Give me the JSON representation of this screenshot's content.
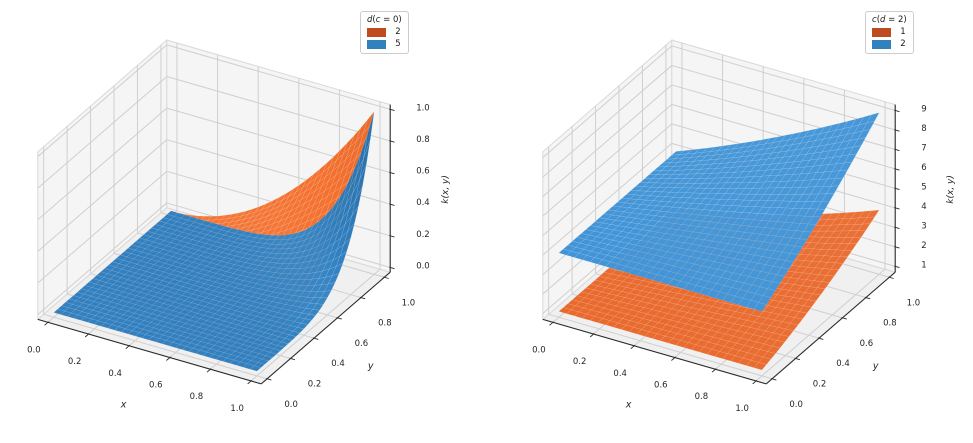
{
  "figure": {
    "background": "#ffffff",
    "description": "Two 3D surface plots of the polynomial kernel k(x, y) = (x*y + c)^d"
  },
  "chart_data": [
    {
      "type": "surface3d",
      "kernel_formula": "k(x,y) = (x*y + c)^d",
      "xlabel": "x",
      "ylabel": "y",
      "zlabel": "k(x, y)",
      "xticks": [
        "0.0",
        "0.2",
        "0.4",
        "0.6",
        "0.8",
        "1.0"
      ],
      "yticks": [
        "0.0",
        "0.2",
        "0.4",
        "0.6",
        "0.8",
        "1.0"
      ],
      "zticks": [
        "0.0",
        "0.2",
        "0.4",
        "0.6",
        "0.8",
        "1.0"
      ],
      "xlim": [
        -0.05,
        1.05
      ],
      "ylim": [
        -0.05,
        1.05
      ],
      "zlim": [
        -0.03,
        1.03
      ],
      "x_range": [
        0,
        1
      ],
      "y_range": [
        0,
        1
      ],
      "legend": {
        "title_parts": [
          {
            "t": "d",
            "i": true
          },
          {
            "t": "(",
            "i": false
          },
          {
            "t": "c",
            "i": true
          },
          {
            "t": " = 0)",
            "i": false
          }
        ],
        "entries": [
          {
            "label": "2",
            "color": "#bf4c1f"
          },
          {
            "label": "5",
            "color": "#3181bd"
          }
        ]
      },
      "surfaces": [
        {
          "name": "d=2",
          "c": 0,
          "d": 2,
          "base_color": "#f4702e",
          "z_at_00": 0,
          "z_at_11": 1
        },
        {
          "name": "d=5",
          "c": 0,
          "d": 5,
          "base_color": "#3181c2",
          "z_at_00": 0,
          "z_at_11": 1
        }
      ]
    },
    {
      "type": "surface3d",
      "kernel_formula": "k(x,y) = (x*y + c)^d",
      "xlabel": "x",
      "ylabel": "y",
      "zlabel": "k(x, y)",
      "xticks": [
        "0.0",
        "0.2",
        "0.4",
        "0.6",
        "0.8",
        "1.0"
      ],
      "yticks": [
        "0.0",
        "0.2",
        "0.4",
        "0.6",
        "0.8",
        "1.0"
      ],
      "zticks": [
        "1",
        "2",
        "3",
        "4",
        "5",
        "6",
        "7",
        "8",
        "9"
      ],
      "xlim": [
        -0.05,
        1.05
      ],
      "ylim": [
        -0.05,
        1.05
      ],
      "zlim": [
        0.7,
        9.3
      ],
      "x_range": [
        0,
        1
      ],
      "y_range": [
        0,
        1
      ],
      "legend": {
        "title_parts": [
          {
            "t": "c",
            "i": true
          },
          {
            "t": "(",
            "i": false
          },
          {
            "t": "d",
            "i": true
          },
          {
            "t": " = 2)",
            "i": false
          }
        ],
        "entries": [
          {
            "label": "1",
            "color": "#bf4c1f"
          },
          {
            "label": "2",
            "color": "#3181bd"
          }
        ]
      },
      "surfaces": [
        {
          "name": "c=1",
          "c": 1,
          "d": 2,
          "base_color": "#e9692c",
          "z_at_00": 1,
          "z_at_11": 4
        },
        {
          "name": "c=2",
          "c": 2,
          "d": 2,
          "base_color": "#4093d6",
          "z_at_00": 4,
          "z_at_11": 9
        }
      ]
    }
  ],
  "style_colors": {
    "pane_wall": "#f5f5f5",
    "pane_floor": "#f0f0f0",
    "grid_line": "#cfcfcf",
    "pane_edge": "#d9d9d9",
    "spine": "#2b2b2b",
    "tick_label": "#262626"
  }
}
